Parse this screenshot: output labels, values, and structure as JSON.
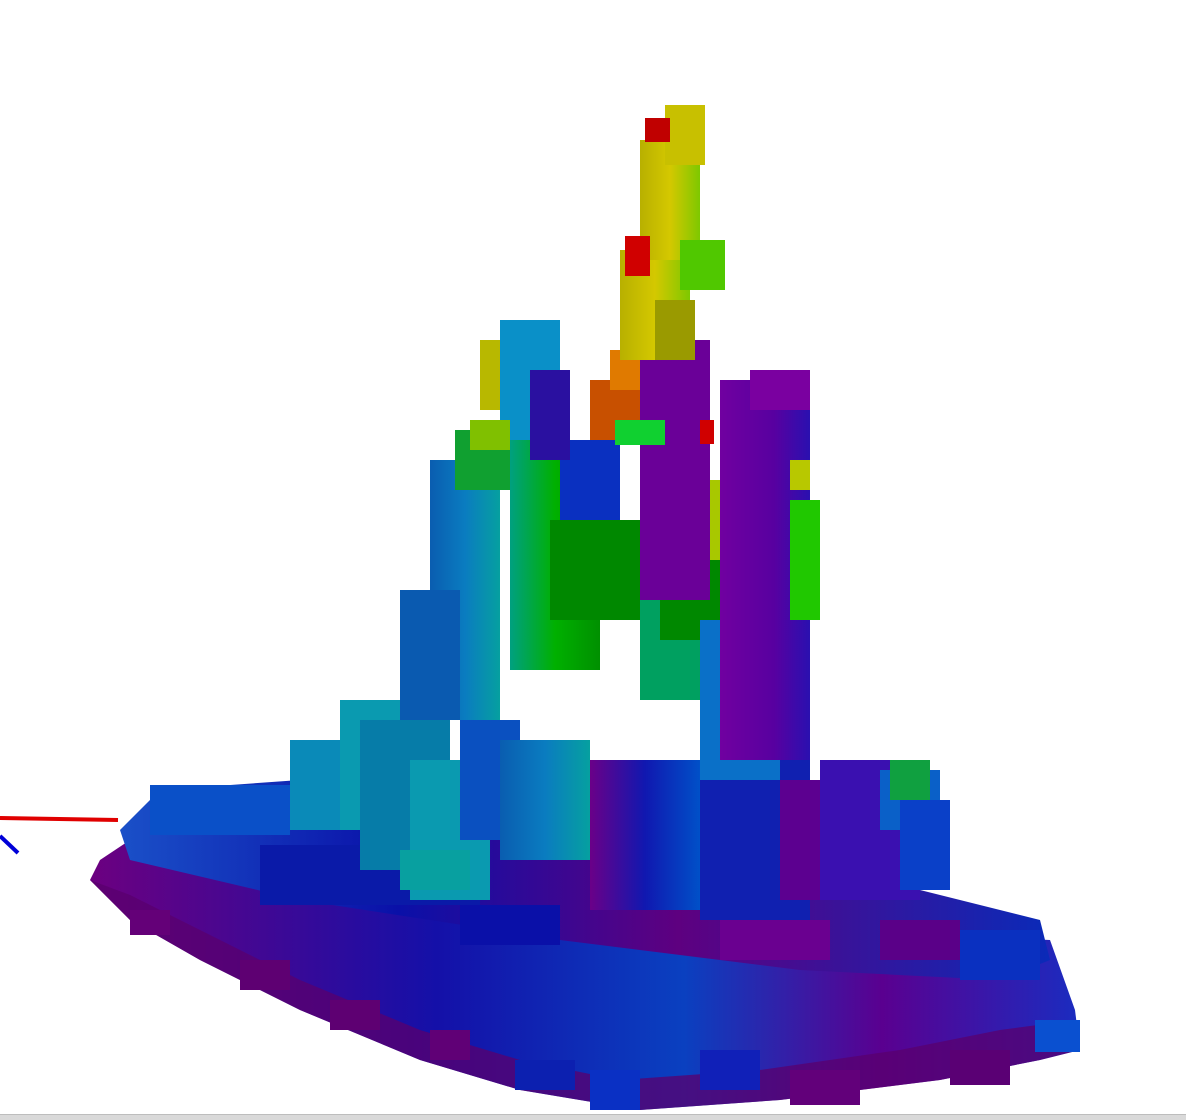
{
  "viewer": {
    "background": "#ffffff",
    "render_style": "voxel-height-field",
    "colormap": [
      "#5e0078",
      "#7a0094",
      "#0a10b0",
      "#0050d0",
      "#0a8ab8",
      "#00b4a0",
      "#00a000",
      "#22d400",
      "#b8c800",
      "#e07a00",
      "#c00000"
    ]
  },
  "axes": {
    "x_color": "#e00000",
    "y_color": "#0000d8"
  }
}
